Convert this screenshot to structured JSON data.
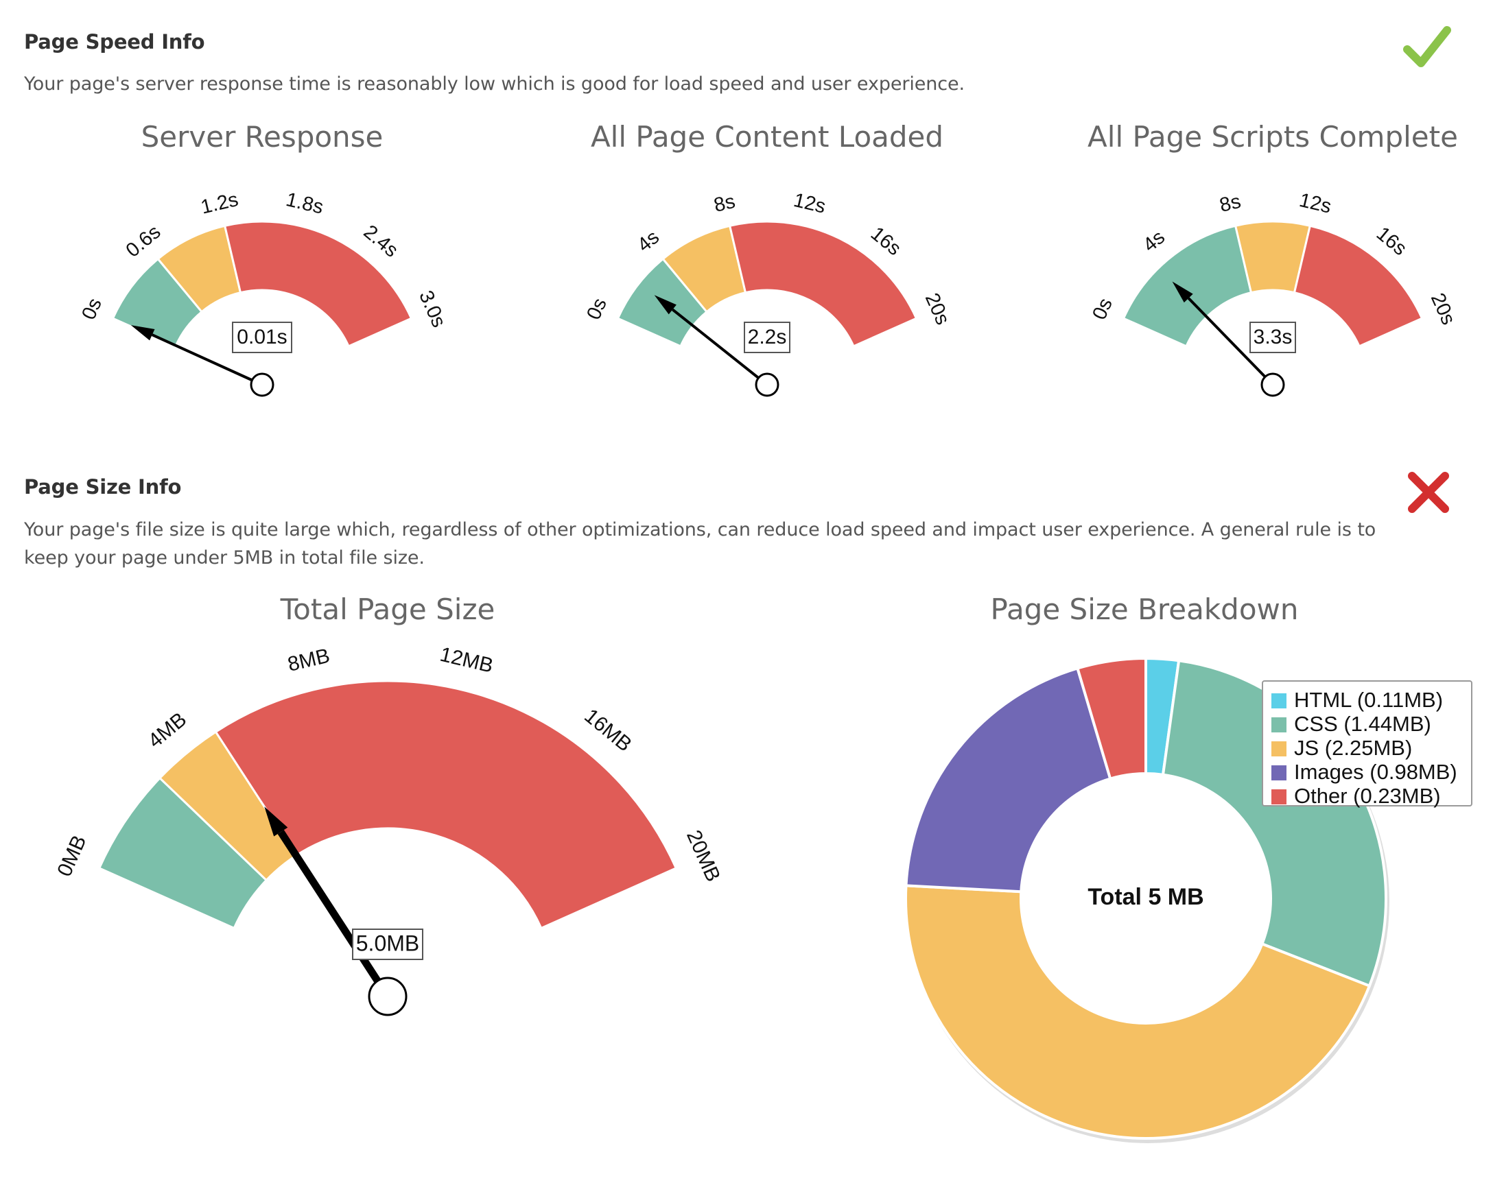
{
  "speed_section": {
    "heading": "Page Speed Info",
    "description": "Your page's server response time is reasonably low which is good for load speed and user experience.",
    "status": "pass",
    "status_icon": "checkmark-icon",
    "status_color": "#8bc34a"
  },
  "size_section": {
    "heading": "Page Size Info",
    "description_line1": "Your page's file size is quite large which, regardless of other optimizations, can reduce load speed and impact user experience. A general rule is to",
    "description_line2": "keep your page under 5MB in total file size.",
    "status": "fail",
    "status_icon": "cross-icon",
    "status_color": "#d32f2f"
  },
  "colors": {
    "good": "#7bbfaa",
    "warn": "#f5c063",
    "bad": "#e05c57",
    "html": "#5bcfe8",
    "css": "#7bbfaa",
    "js": "#f5c063",
    "images": "#7168b5",
    "other": "#e05c57"
  },
  "chart_data": [
    {
      "type": "gauge",
      "title": "Server Response",
      "min": 0,
      "max": 3.0,
      "ticks": [
        "0s",
        "0.6s",
        "1.2s",
        "1.8s",
        "2.4s",
        "3.0s"
      ],
      "bands": [
        {
          "from": 0,
          "to": 0.6,
          "zone": "good"
        },
        {
          "from": 0.6,
          "to": 1.2,
          "zone": "warn"
        },
        {
          "from": 1.2,
          "to": 3.0,
          "zone": "bad"
        }
      ],
      "value": 0.01,
      "value_label": "0.01s"
    },
    {
      "type": "gauge",
      "title": "All Page Content Loaded",
      "min": 0,
      "max": 20,
      "ticks": [
        "0s",
        "4s",
        "8s",
        "12s",
        "16s",
        "20s"
      ],
      "bands": [
        {
          "from": 0,
          "to": 4,
          "zone": "good"
        },
        {
          "from": 4,
          "to": 8,
          "zone": "warn"
        },
        {
          "from": 8,
          "to": 20,
          "zone": "bad"
        }
      ],
      "value": 2.2,
      "value_label": "2.2s"
    },
    {
      "type": "gauge",
      "title": "All Page Scripts Complete",
      "min": 0,
      "max": 20,
      "ticks": [
        "0s",
        "4s",
        "8s",
        "12s",
        "16s",
        "20s"
      ],
      "bands": [
        {
          "from": 0,
          "to": 8,
          "zone": "good"
        },
        {
          "from": 8,
          "to": 12,
          "zone": "warn"
        },
        {
          "from": 12,
          "to": 20,
          "zone": "bad"
        }
      ],
      "value": 3.3,
      "value_label": "3.3s"
    },
    {
      "type": "gauge",
      "title": "Total Page Size",
      "min": 0,
      "max": 20,
      "ticks": [
        "0MB",
        "4MB",
        "8MB",
        "12MB",
        "16MB",
        "20MB"
      ],
      "bands": [
        {
          "from": 0,
          "to": 3,
          "zone": "good"
        },
        {
          "from": 3,
          "to": 5,
          "zone": "warn"
        },
        {
          "from": 5,
          "to": 20,
          "zone": "bad"
        }
      ],
      "value": 5.0,
      "value_label": "5.0MB"
    },
    {
      "type": "pie",
      "title": "Page Size Breakdown",
      "center_label": "Total 5 MB",
      "legend_position": "top-right",
      "slices": [
        {
          "name": "HTML",
          "value": 0.11,
          "legend": "HTML (0.11MB)",
          "color_key": "html"
        },
        {
          "name": "CSS",
          "value": 1.44,
          "legend": "CSS (1.44MB)",
          "color_key": "css"
        },
        {
          "name": "JS",
          "value": 2.25,
          "legend": "JS (2.25MB)",
          "color_key": "js"
        },
        {
          "name": "Images",
          "value": 0.98,
          "legend": "Images (0.98MB)",
          "color_key": "images"
        },
        {
          "name": "Other",
          "value": 0.23,
          "legend": "Other (0.23MB)",
          "color_key": "other"
        }
      ]
    }
  ]
}
